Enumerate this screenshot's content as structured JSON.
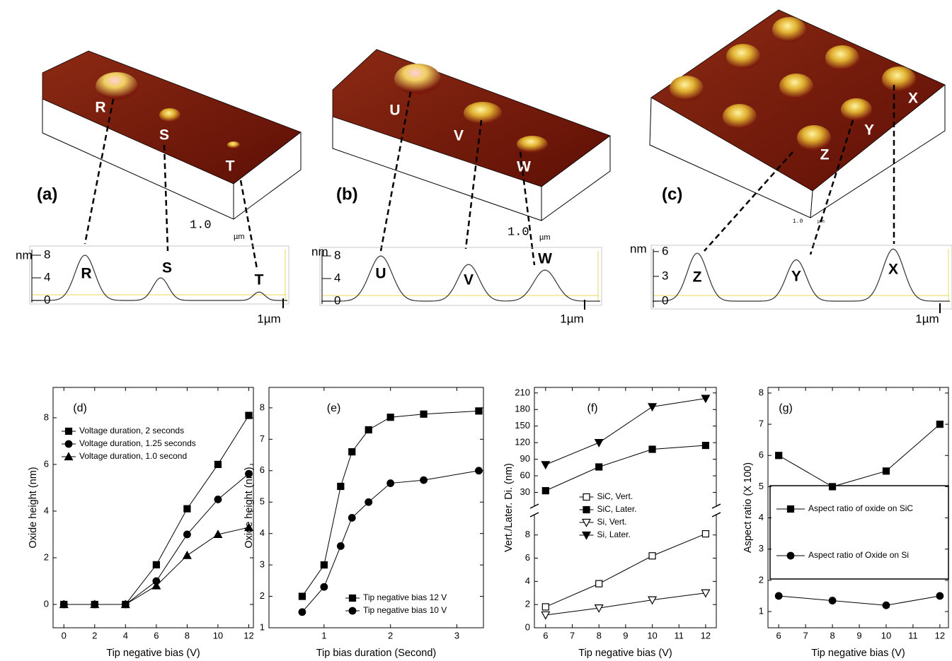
{
  "images": [
    {
      "label": "(a)",
      "peaks": [
        "R",
        "S",
        "T"
      ],
      "scale": "1.0",
      "unit": "µm",
      "profile": {
        "unit": "nm",
        "ticks": [
          8,
          4,
          0
        ],
        "peaks": [
          "R",
          "S",
          "T"
        ],
        "scale": "1µm"
      }
    },
    {
      "label": "(b)",
      "peaks": [
        "U",
        "V",
        "W"
      ],
      "scale": "1.0",
      "unit": "µm",
      "profile": {
        "unit": "nm",
        "ticks": [
          8,
          4,
          0
        ],
        "peaks": [
          "U",
          "V",
          "W"
        ],
        "scale": "1µm"
      }
    },
    {
      "label": "(c)",
      "peaks": [
        "X",
        "Y",
        "Z"
      ],
      "scale": "1.0",
      "unit": "µm",
      "profile": {
        "unit": "nm",
        "ticks": [
          6,
          3,
          0
        ],
        "peaks": [
          "Z",
          "Y",
          "X"
        ],
        "scale": "1µm"
      }
    }
  ],
  "chart_data": [
    {
      "type": "line",
      "annotation": "(d)",
      "xlabel": "Tip negative bias (V)",
      "ylabel": "Oxide height (nm)",
      "x": [
        0,
        2,
        4,
        6,
        8,
        10,
        12
      ],
      "xlim": [
        -0.7,
        12.3
      ],
      "xticks": [
        0,
        2,
        4,
        6,
        8,
        10,
        12
      ],
      "ylim": [
        -1,
        9.3
      ],
      "yticks": [
        0,
        2,
        4,
        6,
        8
      ],
      "legend": "upper left",
      "series": [
        {
          "name": "Voltage duration, 2 seconds",
          "color": "#000000",
          "marker": "square",
          "values": [
            0,
            0,
            0,
            1.7,
            4.1,
            6.0,
            8.1
          ]
        },
        {
          "name": "Voltage duration, 1.25 seconds",
          "color": "#000000",
          "marker": "circle",
          "values": [
            0,
            0,
            0,
            1.0,
            3.0,
            4.5,
            5.6
          ]
        },
        {
          "name": "Voltage duration, 1.0 second",
          "color": "#000000",
          "marker": "triangle",
          "values": [
            0,
            0,
            0,
            0.8,
            2.1,
            3.0,
            3.3
          ]
        }
      ]
    },
    {
      "type": "line",
      "annotation": "(e)",
      "xlabel": "Tip bias duration (Second)",
      "ylabel": "Oxide height (nm)",
      "x": [
        0.67,
        1,
        1.25,
        1.42,
        1.67,
        2,
        2.5,
        3.33
      ],
      "xlim": [
        0.17,
        3.4
      ],
      "xticks": [
        1,
        2,
        3
      ],
      "ylim": [
        1,
        8.65
      ],
      "yticks": [
        1,
        2,
        3,
        4,
        5,
        6,
        7,
        8
      ],
      "legend": "lower right",
      "series": [
        {
          "name": "Tip negative bias 12 V",
          "color": "#000000",
          "marker": "square",
          "values": [
            2.0,
            3.0,
            5.5,
            6.6,
            7.3,
            7.7,
            7.8,
            7.9
          ]
        },
        {
          "name": "Tip negative bias 10 V",
          "color": "#000000",
          "marker": "circle",
          "values": [
            1.5,
            2.3,
            3.6,
            4.5,
            5.0,
            5.6,
            5.7,
            6.0
          ]
        }
      ]
    },
    {
      "type": "line",
      "annotation": "(f)",
      "xlabel": "Tip negative bias (V)",
      "ylabel": "Vert./Later. Di. (nm)",
      "x": [
        6,
        8,
        10,
        12
      ],
      "xlim": [
        5.58,
        12.4
      ],
      "xticks": [
        6,
        7,
        8,
        9,
        10,
        11,
        12
      ],
      "ylim": [
        0,
        9.75
      ],
      "yticks": [
        0,
        2,
        4,
        6,
        8
      ],
      "y2lim": [
        5,
        220
      ],
      "y2ticks": [
        30,
        60,
        90,
        120,
        150,
        180,
        210
      ],
      "legend": "center",
      "series": [
        {
          "name": "SiC, Vert.",
          "color": "#000000",
          "marker": "square-open",
          "values": [
            1.8,
            3.8,
            6.2,
            8.1
          ]
        },
        {
          "name": "SiC, Later.",
          "color": "#000000",
          "marker": "square",
          "axis": "y2",
          "values": [
            33,
            76,
            108,
            115
          ]
        },
        {
          "name": "Si, Vert.",
          "color": "#000000",
          "marker": "triangle-down-open",
          "values": [
            1.1,
            1.7,
            2.4,
            3.0
          ]
        },
        {
          "name": "Si, Later.",
          "color": "#000000",
          "marker": "triangle-down",
          "axis": "y2",
          "values": [
            80,
            120,
            185,
            200
          ]
        }
      ]
    },
    {
      "type": "line",
      "annotation": "(g)",
      "xlabel": "Tip negative bias (V)",
      "ylabel": "Aspect ratio (X 100)",
      "x": [
        6,
        8,
        10,
        12
      ],
      "xlim": [
        5.6,
        12.32
      ],
      "xticks": [
        6,
        7,
        8,
        9,
        10,
        11,
        12
      ],
      "ylim": [
        0.48,
        8.18
      ],
      "yticks": [
        1,
        2,
        3,
        4,
        5,
        6,
        7,
        8
      ],
      "legend": "center",
      "legend_frame": true,
      "series": [
        {
          "name": "Aspect ratio of oxide on SiC",
          "color": "#000000",
          "marker": "square",
          "values": [
            6,
            5,
            5.5,
            7
          ]
        },
        {
          "name": "Aspect ratio of Oxide on Si",
          "color": "#000000",
          "marker": "circle",
          "values": [
            1.5,
            1.35,
            1.2,
            1.5
          ]
        }
      ]
    }
  ]
}
